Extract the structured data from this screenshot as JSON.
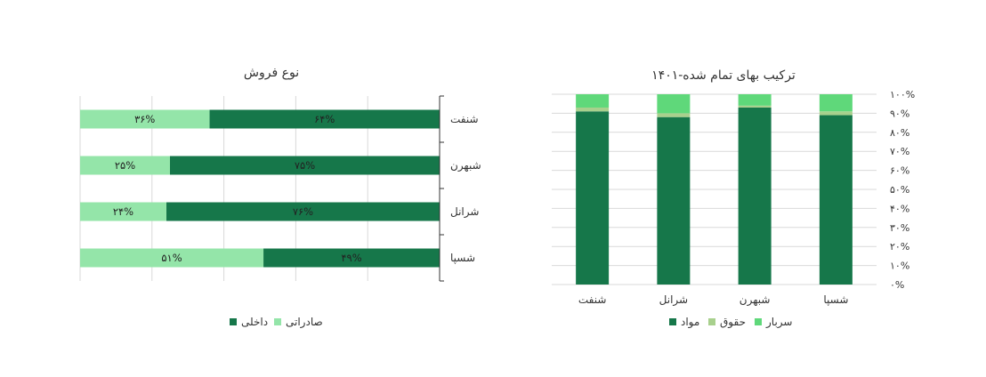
{
  "colors": {
    "dark": "#16774a",
    "light": "#94e5a9",
    "hoghugh": "#a8d08d",
    "sarbar": "#5fd87a",
    "grid": "#d9d9d9",
    "axis": "#333333"
  },
  "chart_data": [
    {
      "type": "bar",
      "orientation": "horizontal",
      "stacked": true,
      "title": "نوع فروش",
      "categories": [
        "شنفت",
        "شبهرن",
        "شرانل",
        "شسپا"
      ],
      "series": [
        {
          "name": "داخلی",
          "values": [
            64,
            75,
            76,
            49
          ],
          "labels": [
            "۶۴%",
            "۷۵%",
            "۷۶%",
            "۴۹%"
          ]
        },
        {
          "name": "صادراتی",
          "values": [
            36,
            25,
            24,
            51
          ],
          "labels": [
            "۳۶%",
            "۲۵%",
            "۲۴%",
            "۵۱%"
          ]
        }
      ],
      "xlim": [
        0,
        100
      ],
      "legend": [
        "داخلی",
        "صادراتی"
      ],
      "legend_position": "bottom"
    },
    {
      "type": "bar",
      "stacked": true,
      "title": "ترکیب بهای تمام شده-۱۴۰۱",
      "categories": [
        "شنفت",
        "شرانل",
        "شبهرن",
        "شسپا"
      ],
      "series": [
        {
          "name": "مواد",
          "values": [
            91,
            88,
            93,
            89
          ]
        },
        {
          "name": "حقوق",
          "values": [
            2,
            2,
            1,
            2
          ]
        },
        {
          "name": "سربار",
          "values": [
            7,
            10,
            6,
            9
          ]
        }
      ],
      "ylim": [
        0,
        100
      ],
      "yticks": [
        "۰%",
        "۱۰%",
        "۲۰%",
        "۳۰%",
        "۴۰%",
        "۵۰%",
        "۶۰%",
        "۷۰%",
        "۸۰%",
        "۹۰%",
        "۱۰۰%"
      ],
      "grid": true,
      "legend": [
        "مواد",
        "حقوق",
        "سربار"
      ],
      "legend_position": "bottom"
    }
  ]
}
